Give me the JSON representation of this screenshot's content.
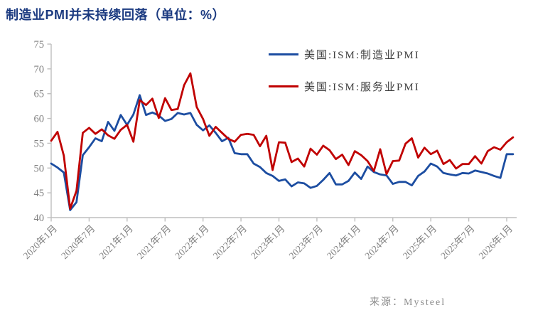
{
  "page": {
    "title": "制造业PMI并未持续回落（单位：%）",
    "source": "来源：Mysteel"
  },
  "colors": {
    "title": "#1b3a80",
    "axis": "#bfbfbf",
    "tick_label": "#808080",
    "legend_text": "#404040",
    "source_text": "#8c8c8c",
    "manufacturing_line": "#1c4da1",
    "services_line": "#c00000",
    "background": "#ffffff"
  },
  "legend": {
    "items": [
      {
        "id": "manufacturing",
        "label": "美国:ISM:制造业PMI",
        "color": "#1c4da1"
      },
      {
        "id": "services",
        "label": "美国:ISM:服务业PMI",
        "color": "#c00000"
      }
    ]
  },
  "chart_data": {
    "type": "line",
    "title": "制造业PMI并未持续回落（单位：%）",
    "unit": "%",
    "grid": false,
    "legend_position": "top-center",
    "ylim": [
      40,
      75
    ],
    "y_ticks": [
      40,
      45,
      50,
      55,
      60,
      65,
      70,
      75
    ],
    "x_frequency": "monthly",
    "x_start": "2020-01",
    "x_end": "2026-02",
    "x_tick_labels": [
      "2020年1月",
      "2020年7月",
      "2021年1月",
      "2021年7月",
      "2022年1月",
      "2022年7月",
      "2023年1月",
      "2023年7月",
      "2024年1月",
      "2024年7月",
      "2025年1月",
      "2025年7月",
      "2026年1月"
    ],
    "x_tick_month_step": 6,
    "months": [
      "2020-01",
      "2020-02",
      "2020-03",
      "2020-04",
      "2020-05",
      "2020-06",
      "2020-07",
      "2020-08",
      "2020-09",
      "2020-10",
      "2020-11",
      "2020-12",
      "2021-01",
      "2021-02",
      "2021-03",
      "2021-04",
      "2021-05",
      "2021-06",
      "2021-07",
      "2021-08",
      "2021-09",
      "2021-10",
      "2021-11",
      "2021-12",
      "2022-01",
      "2022-02",
      "2022-03",
      "2022-04",
      "2022-05",
      "2022-06",
      "2022-07",
      "2022-08",
      "2022-09",
      "2022-10",
      "2022-11",
      "2022-12",
      "2023-01",
      "2023-02",
      "2023-03",
      "2023-04",
      "2023-05",
      "2023-06",
      "2023-07",
      "2023-08",
      "2023-09",
      "2023-10",
      "2023-11",
      "2023-12",
      "2024-01",
      "2024-02",
      "2024-03",
      "2024-04",
      "2024-05",
      "2024-06",
      "2024-07",
      "2024-08",
      "2024-09",
      "2024-10",
      "2024-11",
      "2024-12",
      "2025-01",
      "2025-02",
      "2025-03",
      "2025-04",
      "2025-05",
      "2025-06",
      "2025-07",
      "2025-08",
      "2025-09",
      "2025-10",
      "2025-11",
      "2025-12",
      "2026-01",
      "2026-02"
    ],
    "series": [
      {
        "id": "manufacturing",
        "name": "美国:ISM:制造业PMI",
        "color": "#1c4da1",
        "values": [
          50.9,
          50.1,
          49.1,
          41.5,
          43.1,
          52.6,
          54.2,
          56.0,
          55.4,
          59.3,
          57.5,
          60.7,
          58.7,
          60.8,
          64.7,
          60.7,
          61.2,
          60.6,
          59.5,
          59.9,
          61.1,
          60.8,
          61.1,
          58.7,
          57.6,
          58.6,
          57.1,
          55.4,
          56.1,
          53.0,
          52.8,
          52.8,
          50.9,
          50.2,
          49.0,
          48.4,
          47.4,
          47.7,
          46.3,
          47.1,
          46.9,
          46.0,
          46.4,
          47.6,
          49.0,
          46.7,
          46.7,
          47.4,
          49.1,
          47.8,
          50.3,
          49.2,
          48.7,
          48.5,
          46.8,
          47.2,
          47.2,
          46.5,
          48.4,
          49.3,
          50.9,
          50.3,
          49.0,
          48.7,
          48.5,
          49.0,
          48.9,
          49.5,
          49.2,
          48.9,
          48.4,
          48.0,
          52.8,
          52.8
        ]
      },
      {
        "id": "services",
        "name": "美国:ISM:服务业PMI",
        "color": "#c00000",
        "values": [
          55.5,
          57.3,
          52.5,
          41.8,
          45.4,
          57.1,
          58.1,
          56.9,
          57.8,
          56.6,
          55.9,
          57.7,
          58.7,
          55.3,
          63.7,
          62.7,
          64.0,
          60.1,
          64.1,
          61.7,
          61.9,
          66.7,
          69.1,
          62.3,
          59.9,
          56.5,
          58.3,
          57.1,
          55.9,
          55.3,
          56.7,
          56.9,
          56.7,
          54.4,
          56.5,
          49.6,
          55.2,
          55.1,
          51.2,
          51.9,
          50.3,
          53.9,
          52.7,
          54.5,
          53.6,
          51.8,
          52.7,
          50.6,
          53.4,
          52.6,
          51.4,
          49.4,
          53.8,
          48.8,
          51.4,
          51.5,
          54.9,
          56.0,
          52.1,
          54.1,
          52.8,
          53.5,
          50.8,
          51.6,
          49.9,
          50.8,
          50.8,
          52.4,
          50.9,
          53.4,
          54.2,
          53.7,
          55.2,
          56.2
        ]
      }
    ]
  }
}
